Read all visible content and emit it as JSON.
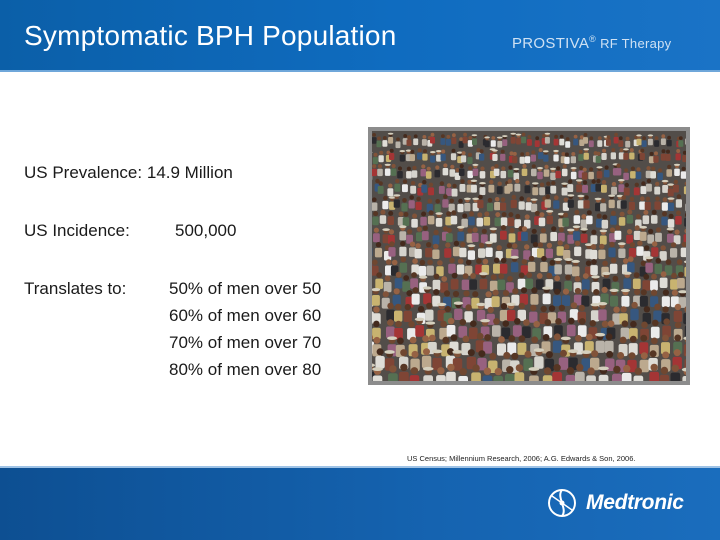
{
  "header": {
    "title": "Symptomatic BPH Population",
    "brand_name": "PROSTIVA",
    "brand_mark": "®",
    "brand_suffix": "RF Therapy"
  },
  "stats": {
    "prevalence_label": "US Prevalence:",
    "prevalence_value": "14.9 Million",
    "incidence_label": "US Incidence:",
    "incidence_value": "500,000",
    "translates_label": "Translates to:",
    "translates_items": [
      "50% of men over 50",
      "60% of men over 60",
      "70% of men over 70",
      "80% of men over 80"
    ]
  },
  "citation": "US Census; Millennium Research, 2006; A.G. Edwards & Son, 2006.",
  "footer": {
    "logo_text": "Medtronic"
  },
  "colors": {
    "header_blue": "#0f6cc0",
    "footer_blue": "#1563b0",
    "text": "#1a1a1a"
  }
}
